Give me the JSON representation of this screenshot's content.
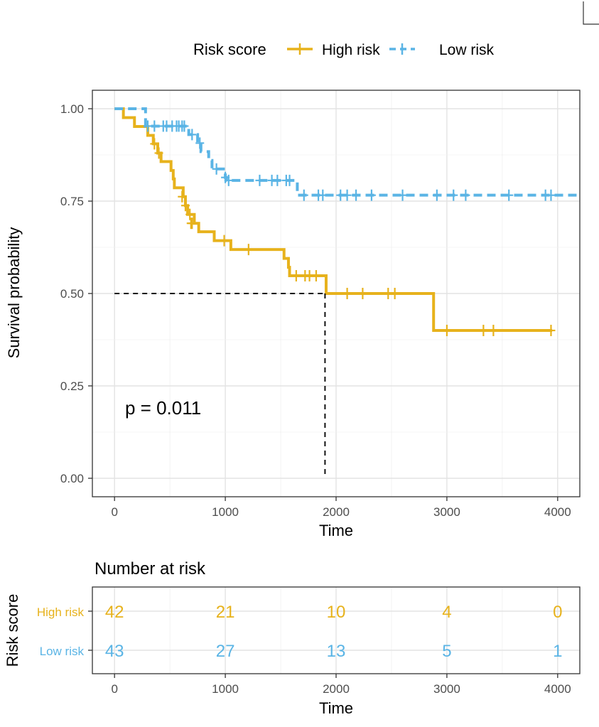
{
  "chart_data": [
    {
      "type": "line",
      "subtype": "kaplan-meier",
      "title": "",
      "xlabel": "Time",
      "ylabel": "Survival probability",
      "xlim": [
        -200,
        4200
      ],
      "ylim": [
        -0.05,
        1.05
      ],
      "xticks": [
        0,
        1000,
        2000,
        3000,
        4000
      ],
      "xtick_labels": [
        "0",
        "1000",
        "2000",
        "3000",
        "4000"
      ],
      "yticks": [
        0,
        0.25,
        0.5,
        0.75,
        1.0
      ],
      "ytick_labels": [
        "0.00",
        "0.25",
        "0.50",
        "0.75",
        "1.00"
      ],
      "grid": true,
      "legend": {
        "title": "Risk score",
        "position": "top",
        "entries": [
          {
            "label": "High risk",
            "color": "#E7B21C",
            "dash": "solid"
          },
          {
            "label": "Low risk",
            "color": "#5AB4E5",
            "dash": "dashed"
          }
        ]
      },
      "annotation": "p = 0.011",
      "median_line": {
        "y": 0.5,
        "x": 1900
      },
      "series": [
        {
          "name": "High risk",
          "color": "#E7B21C",
          "dash": "solid",
          "steps": [
            [
              0,
              1.0
            ],
            [
              80,
              0.976
            ],
            [
              180,
              0.952
            ],
            [
              300,
              0.928
            ],
            [
              350,
              0.905
            ],
            [
              390,
              0.88
            ],
            [
              420,
              0.857
            ],
            [
              510,
              0.833
            ],
            [
              530,
              0.81
            ],
            [
              540,
              0.786
            ],
            [
              620,
              0.762
            ],
            [
              640,
              0.738
            ],
            [
              660,
              0.714
            ],
            [
              720,
              0.69
            ],
            [
              760,
              0.667
            ],
            [
              900,
              0.643
            ],
            [
              1050,
              0.619
            ],
            [
              1210,
              0.619
            ],
            [
              1530,
              0.595
            ],
            [
              1570,
              0.571
            ],
            [
              1580,
              0.548
            ],
            [
              1910,
              0.5
            ],
            [
              2880,
              0.4
            ],
            [
              3950,
              0.4
            ]
          ],
          "censor": [
            [
              360,
              0.905
            ],
            [
              400,
              0.88
            ],
            [
              610,
              0.762
            ],
            [
              640,
              0.738
            ],
            [
              680,
              0.714
            ],
            [
              690,
              0.69
            ],
            [
              700,
              0.69
            ],
            [
              990,
              0.643
            ],
            [
              1210,
              0.619
            ],
            [
              1640,
              0.548
            ],
            [
              1720,
              0.548
            ],
            [
              1760,
              0.548
            ],
            [
              1820,
              0.548
            ],
            [
              2100,
              0.5
            ],
            [
              2240,
              0.5
            ],
            [
              2470,
              0.5
            ],
            [
              2530,
              0.5
            ],
            [
              3000,
              0.4
            ],
            [
              3330,
              0.4
            ],
            [
              3420,
              0.4
            ],
            [
              3940,
              0.4
            ]
          ]
        },
        {
          "name": "Low risk",
          "color": "#5AB4E5",
          "dash": "dashed",
          "steps": [
            [
              0,
              1.0
            ],
            [
              270,
              1.0
            ],
            [
              280,
              0.953
            ],
            [
              660,
              0.953
            ],
            [
              670,
              0.93
            ],
            [
              750,
              0.907
            ],
            [
              780,
              0.884
            ],
            [
              850,
              0.86
            ],
            [
              880,
              0.837
            ],
            [
              1000,
              0.814
            ],
            [
              1010,
              0.806
            ],
            [
              1630,
              0.806
            ],
            [
              1650,
              0.766
            ],
            [
              4200,
              0.766
            ]
          ],
          "censor": [
            [
              300,
              0.953
            ],
            [
              360,
              0.953
            ],
            [
              440,
              0.953
            ],
            [
              470,
              0.953
            ],
            [
              520,
              0.953
            ],
            [
              560,
              0.953
            ],
            [
              580,
              0.953
            ],
            [
              610,
              0.953
            ],
            [
              630,
              0.953
            ],
            [
              700,
              0.93
            ],
            [
              770,
              0.907
            ],
            [
              920,
              0.837
            ],
            [
              1000,
              0.814
            ],
            [
              1030,
              0.806
            ],
            [
              1310,
              0.806
            ],
            [
              1420,
              0.806
            ],
            [
              1470,
              0.806
            ],
            [
              1550,
              0.806
            ],
            [
              1580,
              0.806
            ],
            [
              1710,
              0.766
            ],
            [
              1840,
              0.766
            ],
            [
              1880,
              0.766
            ],
            [
              2040,
              0.766
            ],
            [
              2100,
              0.766
            ],
            [
              2180,
              0.766
            ],
            [
              2320,
              0.766
            ],
            [
              2600,
              0.766
            ],
            [
              2910,
              0.766
            ],
            [
              3060,
              0.766
            ],
            [
              3170,
              0.766
            ],
            [
              3560,
              0.766
            ],
            [
              3890,
              0.766
            ],
            [
              3940,
              0.766
            ]
          ]
        }
      ]
    },
    {
      "type": "table",
      "title": "Number at risk",
      "xlabel": "Time",
      "ylabel": "Risk score",
      "xlim": [
        -200,
        4200
      ],
      "xticks": [
        0,
        1000,
        2000,
        3000,
        4000
      ],
      "xtick_labels": [
        "0",
        "1000",
        "2000",
        "3000",
        "4000"
      ],
      "rows": [
        {
          "label": "High risk",
          "color": "#E7B21C",
          "values": [
            42,
            21,
            10,
            4,
            0
          ]
        },
        {
          "label": "Low risk",
          "color": "#5AB4E5",
          "values": [
            43,
            27,
            13,
            5,
            1
          ]
        }
      ]
    }
  ]
}
